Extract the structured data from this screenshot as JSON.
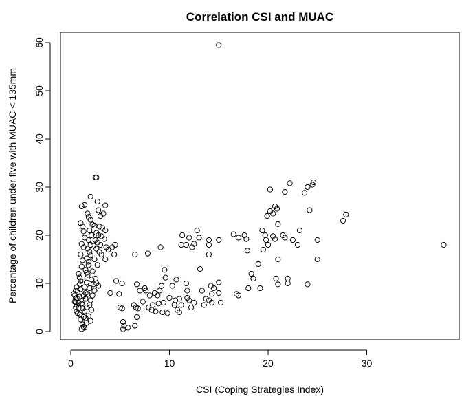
{
  "chart_data": {
    "type": "scatter",
    "title": "Correlation CSI and MUAC",
    "xlabel": "CSI (Coping Strategies Index)",
    "ylabel": "Percentage of children under five with MUAC  < 135mm",
    "xlim": [
      0,
      40
    ],
    "ylim": [
      0,
      62
    ],
    "xticks": [
      0,
      10,
      20,
      30
    ],
    "yticks": [
      0,
      10,
      20,
      30,
      40,
      50,
      60
    ],
    "grid": false,
    "legend": "none",
    "series": [
      {
        "points": [
          [
            0.4,
            7.5
          ],
          [
            0.5,
            6.8
          ],
          [
            0.6,
            5.5
          ],
          [
            0.7,
            8.2
          ],
          [
            0.5,
            6.1
          ],
          [
            0.8,
            4.9
          ],
          [
            0.6,
            7.0
          ],
          [
            0.9,
            9.8
          ],
          [
            1.0,
            10.5
          ],
          [
            0.8,
            12.0
          ],
          [
            1.1,
            13.5
          ],
          [
            0.9,
            11.2
          ],
          [
            1.2,
            14.8
          ],
          [
            1.0,
            16.0
          ],
          [
            1.3,
            17.5
          ],
          [
            1.1,
            18.2
          ],
          [
            1.2,
            21.8
          ],
          [
            1.0,
            22.5
          ],
          [
            1.4,
            19.5
          ],
          [
            1.3,
            20.8
          ],
          [
            1.1,
            26.0
          ],
          [
            1.4,
            26.3
          ],
          [
            0.9,
            3.5
          ],
          [
            1.0,
            2.5
          ],
          [
            1.2,
            1.5
          ],
          [
            1.1,
            0.5
          ],
          [
            1.3,
            1.0
          ],
          [
            1.5,
            2.8
          ],
          [
            1.4,
            4.2
          ],
          [
            1.6,
            5.0
          ],
          [
            1.2,
            6.5
          ],
          [
            1.3,
            7.5
          ],
          [
            1.5,
            8.0
          ],
          [
            1.4,
            9.2
          ],
          [
            1.6,
            10.2
          ],
          [
            1.7,
            11.8
          ],
          [
            1.5,
            12.8
          ],
          [
            1.8,
            13.8
          ],
          [
            1.6,
            15.2
          ],
          [
            1.9,
            16.5
          ],
          [
            1.7,
            17.2
          ],
          [
            2.0,
            18.0
          ],
          [
            1.8,
            19.0
          ],
          [
            2.1,
            20.0
          ],
          [
            1.9,
            21.0
          ],
          [
            2.2,
            22.2
          ],
          [
            2.0,
            23.2
          ],
          [
            1.8,
            23.8
          ],
          [
            1.7,
            24.5
          ],
          [
            2.0,
            28.0
          ],
          [
            2.5,
            32.0
          ],
          [
            2.6,
            32.0
          ],
          [
            2.7,
            27.0
          ],
          [
            2.8,
            25.2
          ],
          [
            3.0,
            24.0
          ],
          [
            3.5,
            26.2
          ],
          [
            3.3,
            24.5
          ],
          [
            2.4,
            22.0
          ],
          [
            2.9,
            21.8
          ],
          [
            3.2,
            21.5
          ],
          [
            3.5,
            21.0
          ],
          [
            2.6,
            20.5
          ],
          [
            2.8,
            20.0
          ],
          [
            3.1,
            19.8
          ],
          [
            3.4,
            19.2
          ],
          [
            2.5,
            19.0
          ],
          [
            2.7,
            18.5
          ],
          [
            3.0,
            18.0
          ],
          [
            3.6,
            17.5
          ],
          [
            3.8,
            17.0
          ],
          [
            2.3,
            17.8
          ],
          [
            2.6,
            17.2
          ],
          [
            2.9,
            16.5
          ],
          [
            3.1,
            16.0
          ],
          [
            2.4,
            15.0
          ],
          [
            3.5,
            15.0
          ],
          [
            2.7,
            13.8
          ],
          [
            2.2,
            12.5
          ],
          [
            2.5,
            11.0
          ],
          [
            2.6,
            10.0
          ],
          [
            2.8,
            9.5
          ],
          [
            2.4,
            8.5
          ],
          [
            2.2,
            7.5
          ],
          [
            2.0,
            6.5
          ],
          [
            1.9,
            5.5
          ],
          [
            2.1,
            4.5
          ],
          [
            1.8,
            3.2
          ],
          [
            2.0,
            2.2
          ],
          [
            1.6,
            1.8
          ],
          [
            1.4,
            0.8
          ],
          [
            0.3,
            7.8
          ],
          [
            0.4,
            6.2
          ],
          [
            0.5,
            5.0
          ],
          [
            0.6,
            4.2
          ],
          [
            0.7,
            3.8
          ],
          [
            0.5,
            8.5
          ],
          [
            0.6,
            9.2
          ],
          [
            0.8,
            6.0
          ],
          [
            0.9,
            7.2
          ],
          [
            1.0,
            8.8
          ],
          [
            1.1,
            5.8
          ],
          [
            1.2,
            4.8
          ],
          [
            1.3,
            3.0
          ],
          [
            1.5,
            6.8
          ],
          [
            1.7,
            7.8
          ],
          [
            1.9,
            9.0
          ],
          [
            2.1,
            10.8
          ],
          [
            2.3,
            9.8
          ],
          [
            1.6,
            12.2
          ],
          [
            1.8,
            14.5
          ],
          [
            2.0,
            15.8
          ],
          [
            4.0,
            8.0
          ],
          [
            4.2,
            17.5
          ],
          [
            4.4,
            16.0
          ],
          [
            4.5,
            18.0
          ],
          [
            4.6,
            10.5
          ],
          [
            4.9,
            7.8
          ],
          [
            5.2,
            10.0
          ],
          [
            5.0,
            5.0
          ],
          [
            5.2,
            4.8
          ],
          [
            5.3,
            2.0
          ],
          [
            5.4,
            1.2
          ],
          [
            5.3,
            0.5
          ],
          [
            5.8,
            0.8
          ],
          [
            6.5,
            16.0
          ],
          [
            6.7,
            9.8
          ],
          [
            6.4,
            5.5
          ],
          [
            6.6,
            5.0
          ],
          [
            6.8,
            4.8
          ],
          [
            6.7,
            3.0
          ],
          [
            6.5,
            1.2
          ],
          [
            7.0,
            8.5
          ],
          [
            7.3,
            6.2
          ],
          [
            7.5,
            9.0
          ],
          [
            7.6,
            8.5
          ],
          [
            7.8,
            16.2
          ],
          [
            8.0,
            7.5
          ],
          [
            7.9,
            5.0
          ],
          [
            8.2,
            4.5
          ],
          [
            8.3,
            5.5
          ],
          [
            8.5,
            8.0
          ],
          [
            8.6,
            4.2
          ],
          [
            8.8,
            7.5
          ],
          [
            8.9,
            5.8
          ],
          [
            9.0,
            8.5
          ],
          [
            9.2,
            9.5
          ],
          [
            9.1,
            17.5
          ],
          [
            9.5,
            12.8
          ],
          [
            9.6,
            11.2
          ],
          [
            9.4,
            6.0
          ],
          [
            9.3,
            4.0
          ],
          [
            9.8,
            3.8
          ],
          [
            10.0,
            7.0
          ],
          [
            10.3,
            9.5
          ],
          [
            10.5,
            5.5
          ],
          [
            10.7,
            10.8
          ],
          [
            10.6,
            6.5
          ],
          [
            10.8,
            4.5
          ],
          [
            11.0,
            6.8
          ],
          [
            11.0,
            4.0
          ],
          [
            11.2,
            5.5
          ],
          [
            11.3,
            20.0
          ],
          [
            11.2,
            18.0
          ],
          [
            11.7,
            10.0
          ],
          [
            11.8,
            8.5
          ],
          [
            11.7,
            18.0
          ],
          [
            12.0,
            19.5
          ],
          [
            11.8,
            7.0
          ],
          [
            12.0,
            6.5
          ],
          [
            12.2,
            5.0
          ],
          [
            12.3,
            17.5
          ],
          [
            12.5,
            18.2
          ],
          [
            12.5,
            6.0
          ],
          [
            12.8,
            21.0
          ],
          [
            13.0,
            19.5
          ],
          [
            13.1,
            13.0
          ],
          [
            13.3,
            8.5
          ],
          [
            13.5,
            5.5
          ],
          [
            13.7,
            6.8
          ],
          [
            14.0,
            19.0
          ],
          [
            14.0,
            18.0
          ],
          [
            14.0,
            16.0
          ],
          [
            14.2,
            9.5
          ],
          [
            14.3,
            7.8
          ],
          [
            14.0,
            6.5
          ],
          [
            14.3,
            6.0
          ],
          [
            14.5,
            9.0
          ],
          [
            15.0,
            59.5
          ],
          [
            15.0,
            19.0
          ],
          [
            15.0,
            10.2
          ],
          [
            15.2,
            6.0
          ],
          [
            15.0,
            8.0
          ],
          [
            16.5,
            20.2
          ],
          [
            16.8,
            7.8
          ],
          [
            17.0,
            7.5
          ],
          [
            17.0,
            19.5
          ],
          [
            17.6,
            20.0
          ],
          [
            17.8,
            19.2
          ],
          [
            17.9,
            16.8
          ],
          [
            18.0,
            9.0
          ],
          [
            18.3,
            12.0
          ],
          [
            18.5,
            11.0
          ],
          [
            19.0,
            14.0
          ],
          [
            19.2,
            9.0
          ],
          [
            19.5,
            17.0
          ],
          [
            19.4,
            21.0
          ],
          [
            19.7,
            20.0
          ],
          [
            19.8,
            19.0
          ],
          [
            20.0,
            18.0
          ],
          [
            19.9,
            24.0
          ],
          [
            20.2,
            25.0
          ],
          [
            20.2,
            29.5
          ],
          [
            20.5,
            24.5
          ],
          [
            20.7,
            26.0
          ],
          [
            20.9,
            25.5
          ],
          [
            20.5,
            19.8
          ],
          [
            20.7,
            19.2
          ],
          [
            21.0,
            22.3
          ],
          [
            21.0,
            15.0
          ],
          [
            20.8,
            11.0
          ],
          [
            21.0,
            9.8
          ],
          [
            21.5,
            20.0
          ],
          [
            21.7,
            29.0
          ],
          [
            21.7,
            19.5
          ],
          [
            22.0,
            11.0
          ],
          [
            22.0,
            10.0
          ],
          [
            22.2,
            30.8
          ],
          [
            22.5,
            19.0
          ],
          [
            23.0,
            18.0
          ],
          [
            23.2,
            21.0
          ],
          [
            23.7,
            28.8
          ],
          [
            24.0,
            30.0
          ],
          [
            24.0,
            9.8
          ],
          [
            24.2,
            25.2
          ],
          [
            24.5,
            30.5
          ],
          [
            24.6,
            31.0
          ],
          [
            25.0,
            19.0
          ],
          [
            25.0,
            15.0
          ],
          [
            27.6,
            23.0
          ],
          [
            27.9,
            24.3
          ],
          [
            37.8,
            18.0
          ]
        ]
      }
    ]
  }
}
